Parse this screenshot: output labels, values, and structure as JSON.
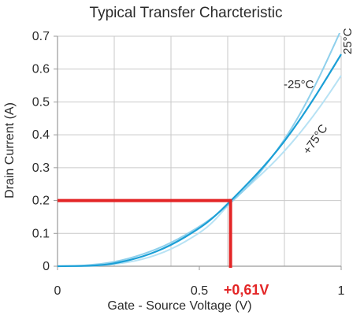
{
  "chart_data": {
    "type": "line",
    "title": "Typical Transfer Charcteristic",
    "xlabel": "Gate - Source Voltage (V)",
    "ylabel": "Drain Current (A)",
    "xlim": [
      0,
      1
    ],
    "ylim": [
      0,
      0.7
    ],
    "x_ticks": [
      {
        "value": 0,
        "label": "0"
      },
      {
        "value": 0.5,
        "label": "0.5"
      },
      {
        "value": 1,
        "label": "1"
      }
    ],
    "y_ticks": [
      {
        "value": 0,
        "label": "0"
      },
      {
        "value": 0.1,
        "label": "0.1"
      },
      {
        "value": 0.2,
        "label": "0.2"
      },
      {
        "value": 0.3,
        "label": "0.3"
      },
      {
        "value": 0.4,
        "label": "0.4"
      },
      {
        "value": 0.5,
        "label": "0.5"
      },
      {
        "value": 0.6,
        "label": "0.6"
      },
      {
        "value": 0.7,
        "label": "0.7"
      }
    ],
    "grid": true,
    "x_grid_step": 0.2,
    "y_grid_step": 0.1,
    "series": [
      {
        "name": "-25°C",
        "color": "#8fd0ec",
        "x": [
          0,
          0.1,
          0.2,
          0.3,
          0.4,
          0.5,
          0.55,
          0.6,
          0.65,
          0.7,
          0.75,
          0.8,
          0.85,
          0.9,
          0.95,
          1.0
        ],
        "y": [
          0,
          0.002,
          0.012,
          0.035,
          0.07,
          0.12,
          0.15,
          0.185,
          0.225,
          0.27,
          0.325,
          0.385,
          0.455,
          0.535,
          0.625,
          0.72
        ]
      },
      {
        "name": "25°C",
        "color": "#1b9fd6",
        "x": [
          0,
          0.1,
          0.15,
          0.2,
          0.3,
          0.4,
          0.5,
          0.55,
          0.6,
          0.65,
          0.7,
          0.75,
          0.8,
          0.85,
          0.9,
          0.95,
          1.0
        ],
        "y": [
          0,
          0.001,
          0.003,
          0.008,
          0.028,
          0.063,
          0.115,
          0.148,
          0.19,
          0.233,
          0.278,
          0.326,
          0.38,
          0.44,
          0.505,
          0.574,
          0.645
        ]
      },
      {
        "name": "+75°C",
        "color": "#b7e2f4",
        "x": [
          0,
          0.1,
          0.2,
          0.3,
          0.4,
          0.5,
          0.55,
          0.6,
          0.65,
          0.7,
          0.75,
          0.8,
          0.85,
          0.9,
          0.95,
          1.0
        ],
        "y": [
          0,
          0.0,
          0.005,
          0.02,
          0.05,
          0.1,
          0.135,
          0.185,
          0.225,
          0.265,
          0.305,
          0.35,
          0.4,
          0.455,
          0.515,
          0.58
        ]
      }
    ],
    "annotation": {
      "color": "#e32526",
      "x": 0.61,
      "y": 0.2,
      "label": "+0,61V"
    }
  }
}
